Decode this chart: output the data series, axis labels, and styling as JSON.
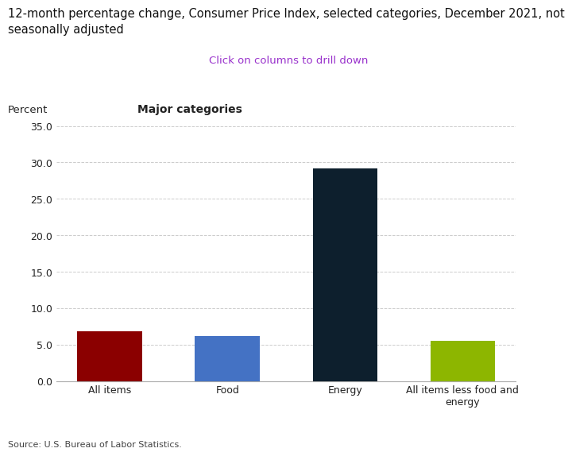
{
  "title": "12-month percentage change, Consumer Price Index, selected categories, December 2021, not\nseasonally adjusted",
  "subtitle": "Click on columns to drill down",
  "subtitle_color": "#9932CC",
  "ylabel": "Percent",
  "xlabel_label": "Major categories",
  "categories": [
    "All items",
    "Food",
    "Energy",
    "All items less food and\nenergy"
  ],
  "values": [
    6.8,
    6.2,
    29.2,
    5.5
  ],
  "bar_colors": [
    "#8B0000",
    "#4472C4",
    "#0D1F2D",
    "#8DB600"
  ],
  "ylim": [
    0.0,
    35.0
  ],
  "yticks": [
    0.0,
    5.0,
    10.0,
    15.0,
    20.0,
    25.0,
    30.0,
    35.0
  ],
  "source_text": "Source: U.S. Bureau of Labor Statistics.",
  "background_color": "#FFFFFF",
  "grid_color": "#CCCCCC",
  "title_fontsize": 10.5,
  "subtitle_fontsize": 9.5,
  "axis_label_fontsize": 9.5,
  "tick_fontsize": 9,
  "source_fontsize": 8
}
